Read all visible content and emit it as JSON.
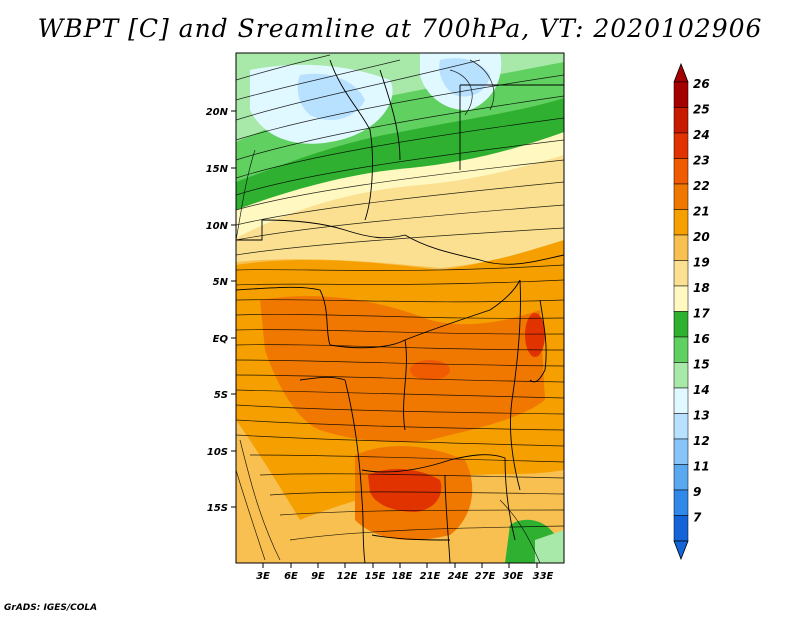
{
  "title": "WBPT [C] and Sreamline at 700hPa, VT: 2020102906",
  "credit": "GrADS: IGES/COLA",
  "map": {
    "lat_range": [
      -21,
      24
    ],
    "lon_range": [
      0,
      36
    ],
    "y_ticks": [
      "20N",
      "15N",
      "10N",
      "5N",
      "EQ",
      "5S",
      "10S",
      "15S"
    ],
    "x_ticks": [
      "3E",
      "6E",
      "9E",
      "12E",
      "15E",
      "18E",
      "21E",
      "24E",
      "27E",
      "30E",
      "33E"
    ]
  },
  "colorbar": {
    "labels": [
      "26",
      "25",
      "24",
      "23",
      "22",
      "21",
      "20",
      "19",
      "18",
      "17",
      "16",
      "15",
      "14",
      "13",
      "12",
      "11",
      "9",
      "7"
    ],
    "colors": [
      "#a50000",
      "#c81a00",
      "#e03300",
      "#f05a00",
      "#f07800",
      "#f5a000",
      "#f8c050",
      "#fae090",
      "#fff8c0",
      "#30b030",
      "#60d060",
      "#a8e8a8",
      "#e0f8ff",
      "#b8e0ff",
      "#88c4f8",
      "#5aa8f0",
      "#3088e8",
      "#1464d8"
    ]
  }
}
